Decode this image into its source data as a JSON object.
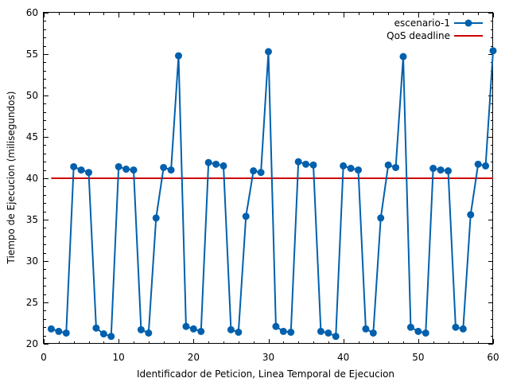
{
  "chart_data": {
    "type": "line",
    "xlabel": "Identificador de Peticion, Linea Temporal de Ejecucion",
    "ylabel": "Tiempo de Ejecucion (milisegundos)",
    "xlim": [
      0,
      60
    ],
    "ylim": [
      20,
      60
    ],
    "xticks": [
      "0",
      "10",
      "20",
      "30",
      "40",
      "50",
      "60"
    ],
    "yticks": [
      "20",
      "25",
      "30",
      "35",
      "40",
      "45",
      "50",
      "55",
      "60"
    ],
    "grid": false,
    "legend_position": "top-right",
    "series": [
      {
        "name": "escenario-1",
        "color": "#0060ad",
        "marker": "circle",
        "x": [
          1,
          2,
          3,
          4,
          5,
          6,
          7,
          8,
          9,
          10,
          11,
          12,
          13,
          14,
          15,
          16,
          17,
          18,
          19,
          20,
          21,
          22,
          23,
          24,
          25,
          26,
          27,
          28,
          29,
          30,
          31,
          32,
          33,
          34,
          35,
          36,
          37,
          38,
          39,
          40,
          41,
          42,
          43,
          44,
          45,
          46,
          47,
          48,
          49,
          50,
          51,
          52,
          53,
          54,
          55,
          56,
          57,
          58,
          59,
          60
        ],
        "y": [
          21.8,
          21.5,
          21.3,
          41.4,
          41.0,
          40.7,
          21.9,
          21.2,
          20.9,
          41.4,
          41.1,
          41.0,
          21.7,
          21.3,
          35.2,
          41.3,
          41.0,
          54.8,
          22.1,
          21.8,
          21.5,
          41.9,
          41.7,
          41.5,
          21.7,
          21.4,
          35.4,
          40.9,
          40.7,
          55.3,
          22.1,
          21.5,
          21.4,
          42.0,
          41.7,
          41.6,
          21.5,
          21.3,
          20.9,
          41.5,
          41.2,
          41.0,
          21.8,
          21.3,
          35.2,
          41.6,
          41.3,
          54.7,
          22.0,
          21.5,
          21.3,
          41.2,
          41.0,
          40.9,
          22.0,
          21.8,
          35.6,
          41.7,
          41.5,
          55.4
        ]
      },
      {
        "name": "QoS deadline",
        "color": "#cc0000",
        "x": [
          1,
          60
        ],
        "y": [
          40,
          40
        ]
      }
    ]
  }
}
